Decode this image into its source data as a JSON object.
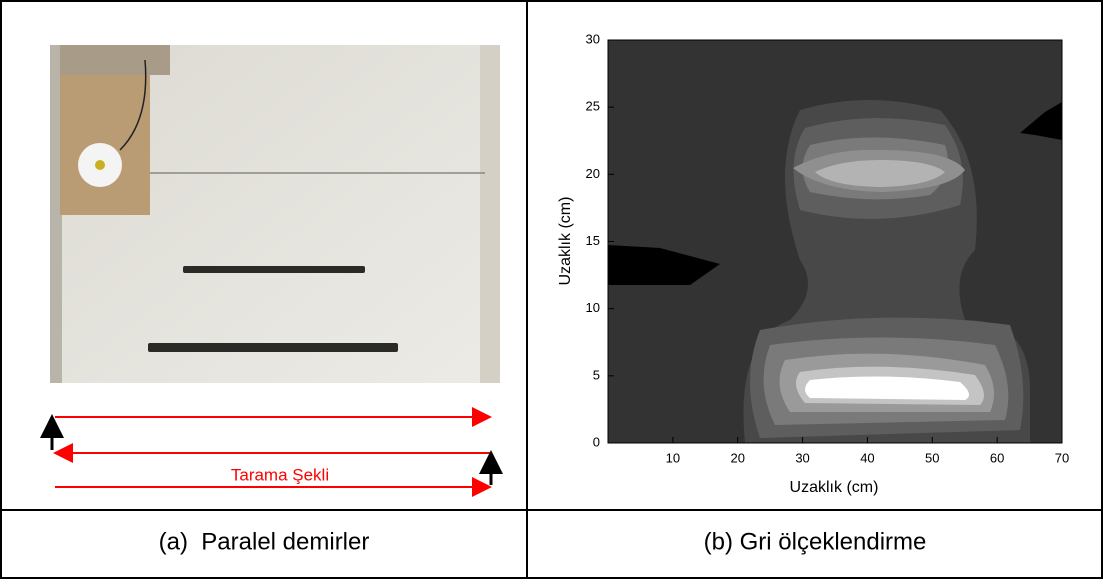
{
  "left": {
    "scan_label": "Tarama Şekli",
    "caption": "(a)  Paralel demirler"
  },
  "right": {
    "caption": "(b) Gri ölçeklendirme"
  },
  "chart_data": {
    "type": "contour",
    "xlabel": "Uzaklık (cm)",
    "ylabel": "Uzaklık (cm)",
    "xlim": [
      0,
      70
    ],
    "ylim": [
      0,
      30
    ],
    "xticks": [
      10,
      20,
      30,
      40,
      50,
      60,
      70
    ],
    "yticks": [
      0,
      5,
      10,
      15,
      20,
      25,
      30
    ]
  }
}
